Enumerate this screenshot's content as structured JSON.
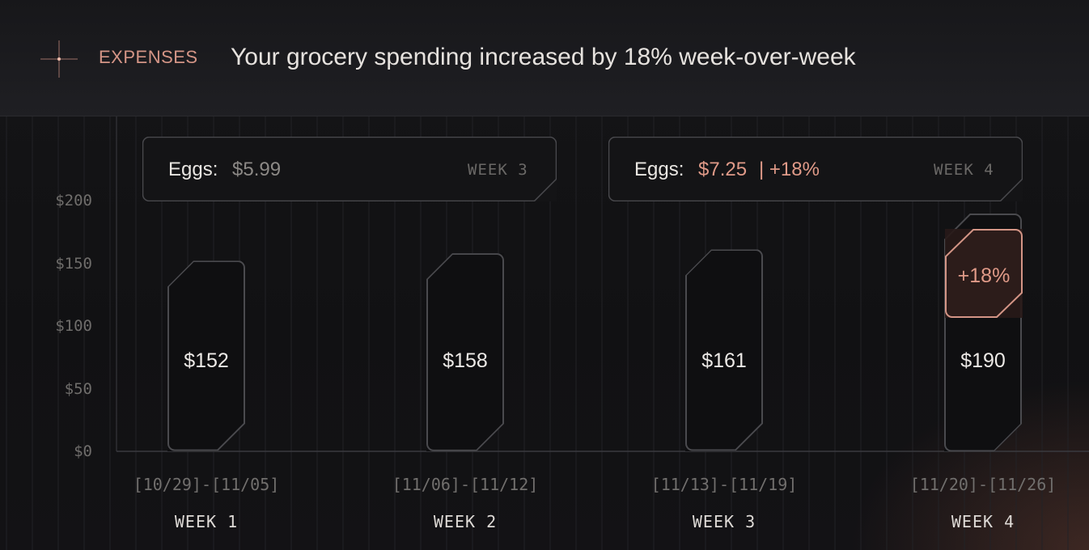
{
  "header": {
    "section_label": "EXPENSES",
    "headline": "Your grocery spending increased by 18% week-over-week"
  },
  "icons": {
    "sparkle": "sparkle-icon"
  },
  "colors": {
    "accent": "#d49586",
    "highlight": "#e09a88",
    "bar_border": "#4a4a4e",
    "background": "#111114"
  },
  "callouts": [
    {
      "item": "Eggs:",
      "price": "$5.99",
      "change": "",
      "week": "WEEK 3"
    },
    {
      "item": "Eggs:",
      "price": "$7.25",
      "change": "| +18%",
      "week": "WEEK 4"
    }
  ],
  "badge": {
    "text": "+18%"
  },
  "chart_data": {
    "type": "bar",
    "title": "",
    "xlabel": "",
    "ylabel": "",
    "ylim": [
      0,
      200
    ],
    "yticks": [
      "$0",
      "$50",
      "$100",
      "$150",
      "$200"
    ],
    "ytick_values": [
      0,
      50,
      100,
      150,
      200
    ],
    "categories": [
      "WEEK 1",
      "WEEK 2",
      "WEEK 3",
      "WEEK 4"
    ],
    "date_ranges": [
      "[10/29]-[11/05]",
      "[11/06]-[11/12]",
      "[11/13]-[11/19]",
      "[11/20]-[11/26]"
    ],
    "values": [
      152,
      158,
      161,
      190
    ],
    "value_labels": [
      "$152",
      "$158",
      "$161",
      "$190"
    ],
    "grid": true,
    "legend": "none"
  }
}
